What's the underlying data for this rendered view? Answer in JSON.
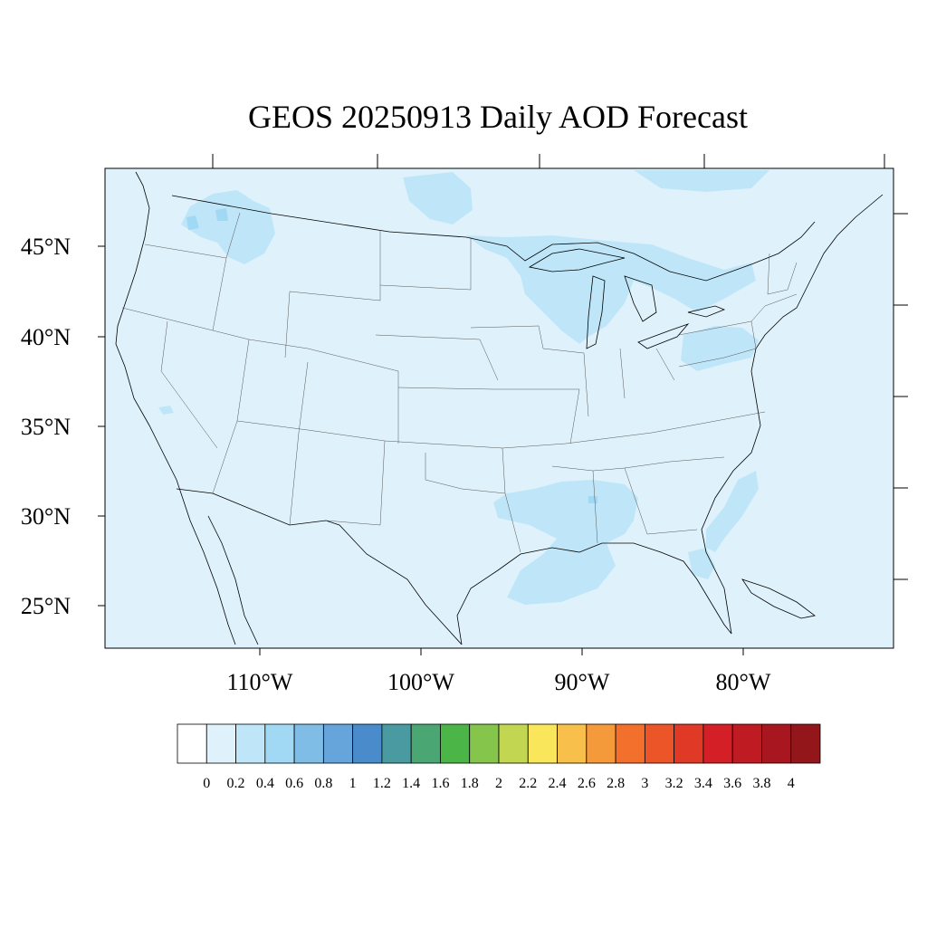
{
  "title": "GEOS 20250913 Daily AOD Forecast",
  "map": {
    "lat_labels": [
      "45°N",
      "40°N",
      "35°N",
      "30°N",
      "25°N"
    ],
    "lon_labels": [
      "110°W",
      "100°W",
      "90°W",
      "80°W"
    ],
    "background_color": "#dff2fb",
    "boundary_color": "#000000"
  },
  "colorbar": {
    "labels": [
      "0",
      "0.2",
      "0.4",
      "0.6",
      "0.8",
      "1",
      "1.2",
      "1.4",
      "1.6",
      "1.8",
      "2",
      "2.2",
      "2.4",
      "2.6",
      "2.8",
      "3",
      "3.2",
      "3.4",
      "3.6",
      "3.8",
      "4"
    ],
    "colors": [
      "#ffffff",
      "#dff2fb",
      "#bfe6f8",
      "#a1d8f4",
      "#80bde6",
      "#66a5db",
      "#4a8ccb",
      "#4a9ba1",
      "#4aa774",
      "#4bb548",
      "#86c54b",
      "#c2d651",
      "#f9e65b",
      "#f8c04a",
      "#f59a3b",
      "#f2702c",
      "#eb5528",
      "#e03a27",
      "#d41f26",
      "#be1b23",
      "#a8171f",
      "#93161b"
    ]
  }
}
